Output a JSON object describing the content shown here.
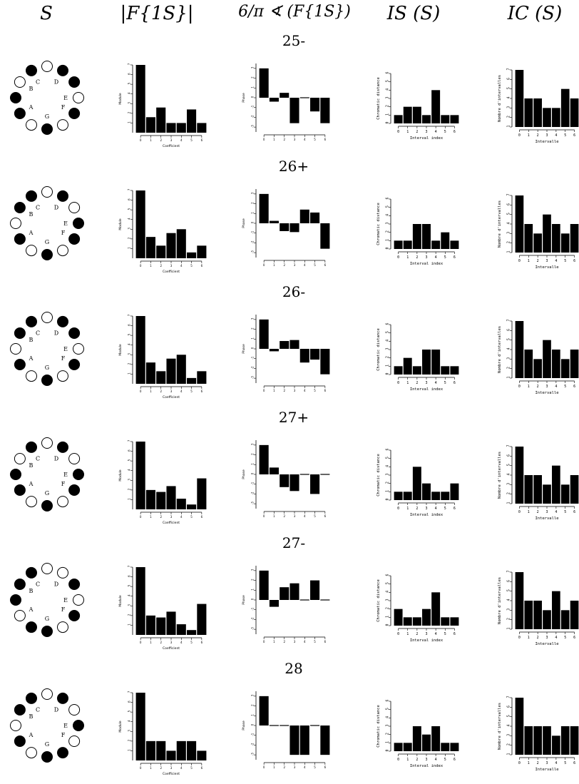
{
  "headers": [
    "S",
    "|F{1S}|",
    "6/π ∢ (F{1S})",
    "IS (S)",
    "IC (S)"
  ],
  "note_labels": [
    "C",
    "D",
    "E",
    "F",
    "G",
    "A",
    "B"
  ],
  "axis_text": {
    "mag_ylabel": "Module",
    "mag_xlabel": "Coefficient",
    "phase_ylabel": "Phase",
    "is_ylabel": "Chromatic distance",
    "is_xlabel": "Interval index",
    "ic_ylabel": "Nombre d'intervalles",
    "ic_xlabel": "Intervalle"
  },
  "chart_data": [
    {
      "label": "25-",
      "notes_filled": [
        0,
        2,
        3,
        5,
        7,
        9,
        10
      ],
      "magnitude": [
        7,
        1.6,
        2.6,
        1,
        1,
        2.4,
        1
      ],
      "phase": [
        3,
        -0.4,
        0.5,
        -2.6,
        0,
        -1.4,
        -2.6
      ],
      "interval_structure": [
        1,
        2,
        2,
        1,
        4,
        1,
        1
      ],
      "interval_content": [
        7,
        4,
        4,
        3,
        3,
        5,
        4
      ]
    },
    {
      "label": "26+",
      "notes_filled": [
        0,
        2,
        4,
        5,
        7,
        9,
        11
      ],
      "magnitude": [
        7,
        2.2,
        1.3,
        2.6,
        3,
        0.6,
        1.3
      ],
      "phase": [
        3,
        0.25,
        -0.8,
        -0.9,
        1.4,
        1.1,
        -2.6
      ],
      "interval_structure": [
        1,
        1,
        3,
        3,
        1,
        2,
        1
      ],
      "interval_content": [
        7,
        4,
        3,
        5,
        4,
        3,
        4
      ]
    },
    {
      "label": "26-",
      "notes_filled": [
        0,
        2,
        3,
        5,
        7,
        9,
        11
      ],
      "magnitude": [
        7,
        2.2,
        1.3,
        2.6,
        3,
        0.6,
        1.3
      ],
      "phase": [
        3,
        -0.25,
        0.8,
        0.9,
        -1.4,
        -1.1,
        -2.6
      ],
      "interval_structure": [
        1,
        2,
        1,
        3,
        3,
        1,
        1
      ],
      "interval_content": [
        7,
        4,
        3,
        5,
        4,
        3,
        4
      ]
    },
    {
      "label": "27+",
      "notes_filled": [
        0,
        2,
        4,
        5,
        7,
        9,
        10
      ],
      "magnitude": [
        7,
        2,
        1.8,
        2.4,
        1.1,
        0.5,
        3.2
      ],
      "phase": [
        3,
        0.7,
        -1.3,
        -1.7,
        0,
        -2,
        0
      ],
      "interval_structure": [
        1,
        1,
        4,
        2,
        1,
        1,
        2
      ],
      "interval_content": [
        7,
        4,
        4,
        3,
        5,
        3,
        4
      ]
    },
    {
      "label": "27-",
      "notes_filled": [
        0,
        3,
        5,
        7,
        8,
        10,
        11
      ],
      "magnitude": [
        7,
        2,
        1.8,
        2.4,
        1.1,
        0.5,
        3.2
      ],
      "phase": [
        3,
        -0.7,
        1.3,
        1.7,
        0,
        2,
        0
      ],
      "interval_structure": [
        2,
        1,
        1,
        2,
        4,
        1,
        1
      ],
      "interval_content": [
        7,
        4,
        4,
        3,
        5,
        3,
        4
      ]
    },
    {
      "label": "28",
      "notes_filled": [
        0,
        2,
        4,
        6,
        7,
        9,
        11
      ],
      "magnitude": [
        7,
        2,
        2,
        1,
        2,
        2,
        1
      ],
      "phase": [
        3,
        0,
        0,
        -3,
        -3,
        0,
        -3
      ],
      "interval_structure": [
        1,
        1,
        3,
        2,
        3,
        1,
        1
      ],
      "interval_content": [
        7,
        4,
        4,
        4,
        3,
        4,
        4
      ]
    }
  ]
}
